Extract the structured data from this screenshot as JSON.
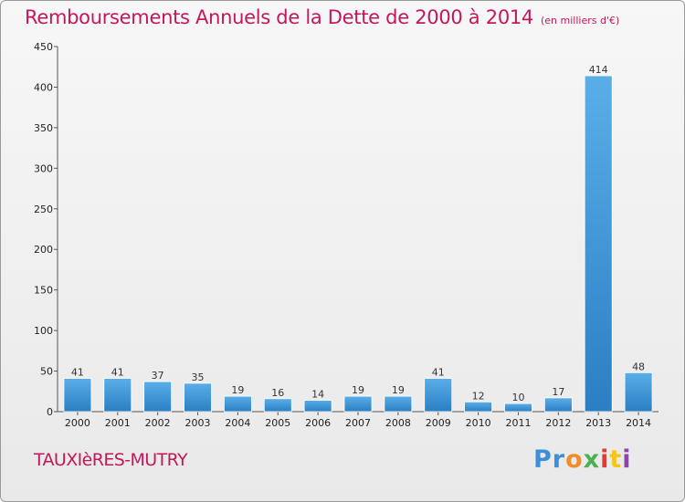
{
  "title": "Remboursements Annuels de la Dette de 2000 à 2014",
  "subtitle": "(en milliers d'€)",
  "city": "TAUXIèRES-MUTRY",
  "logo": [
    "Pr",
    "o",
    "x",
    "i",
    "t",
    "i"
  ],
  "colors": {
    "title": "#c2185b",
    "bar_light": "#5aaee8",
    "bar_dark": "#2a7fc4"
  },
  "chart_data": {
    "type": "bar",
    "categories": [
      "2000",
      "2001",
      "2002",
      "2003",
      "2004",
      "2005",
      "2006",
      "2007",
      "2008",
      "2009",
      "2010",
      "2011",
      "2012",
      "2013",
      "2014"
    ],
    "values": [
      41,
      41,
      37,
      35,
      19,
      16,
      14,
      19,
      19,
      41,
      12,
      10,
      17,
      414,
      48
    ],
    "ylim": [
      0,
      450
    ],
    "yticks": [
      0,
      50,
      100,
      150,
      200,
      250,
      300,
      350,
      400,
      450
    ],
    "grid": false,
    "data_labels": true
  }
}
